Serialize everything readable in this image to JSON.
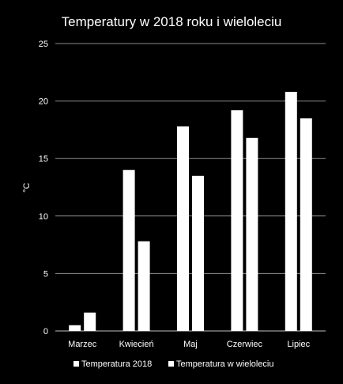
{
  "chart_data": {
    "type": "bar",
    "title": "Temperatury  w 2018 roku i wieloleciu",
    "ylabel": "°C",
    "xlabel": "",
    "ylim": [
      0,
      25
    ],
    "yticks": [
      0,
      5,
      10,
      15,
      20,
      25
    ],
    "grid": true,
    "legend": "bottom",
    "categories": [
      "Marzec",
      "Kwiecień",
      "Maj",
      "Czerwiec",
      "Lipiec"
    ],
    "series": [
      {
        "name": "Temperatura 2018",
        "values": [
          0.5,
          14.0,
          17.8,
          19.2,
          20.8
        ],
        "color": "#ffffff"
      },
      {
        "name": "Temperatura w wieloleciu",
        "values": [
          1.6,
          7.8,
          13.5,
          16.8,
          18.5
        ],
        "color": "#ffffff"
      }
    ]
  }
}
